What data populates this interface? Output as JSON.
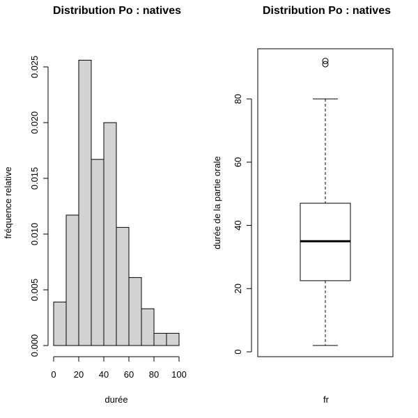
{
  "chart_data": [
    {
      "type": "bar",
      "title": "Distribution Po : natives",
      "xlabel": "durée",
      "ylabel": "fréquence relative",
      "bins": [
        {
          "from": 0,
          "to": 10,
          "value": 0.0039
        },
        {
          "from": 10,
          "to": 20,
          "value": 0.0117
        },
        {
          "from": 20,
          "to": 30,
          "value": 0.0256
        },
        {
          "from": 30,
          "to": 40,
          "value": 0.0167
        },
        {
          "from": 40,
          "to": 50,
          "value": 0.02
        },
        {
          "from": 50,
          "to": 60,
          "value": 0.0106
        },
        {
          "from": 60,
          "to": 70,
          "value": 0.0061
        },
        {
          "from": 70,
          "to": 80,
          "value": 0.0033
        },
        {
          "from": 80,
          "to": 90,
          "value": 0.0011
        },
        {
          "from": 90,
          "to": 100,
          "value": 0.0011
        }
      ],
      "xlim": [
        0,
        100
      ],
      "ylim": [
        0,
        0.026
      ],
      "xticks": [
        "0",
        "20",
        "40",
        "60",
        "80",
        "100"
      ],
      "yticks": [
        "0.000",
        "0.005",
        "0.010",
        "0.015",
        "0.020",
        "0.025"
      ],
      "grid": false
    },
    {
      "type": "boxplot",
      "title": "Distribution Po : natives",
      "xlabel": "fr",
      "ylabel": "durée de la partie orale",
      "whisker_low": 2,
      "q1": 22.5,
      "median": 35,
      "q3": 47,
      "whisker_high": 80,
      "outliers": [
        91,
        92
      ],
      "ylim": [
        0,
        96
      ],
      "yticks": [
        "0",
        "20",
        "40",
        "60",
        "80"
      ],
      "grid": false
    }
  ]
}
